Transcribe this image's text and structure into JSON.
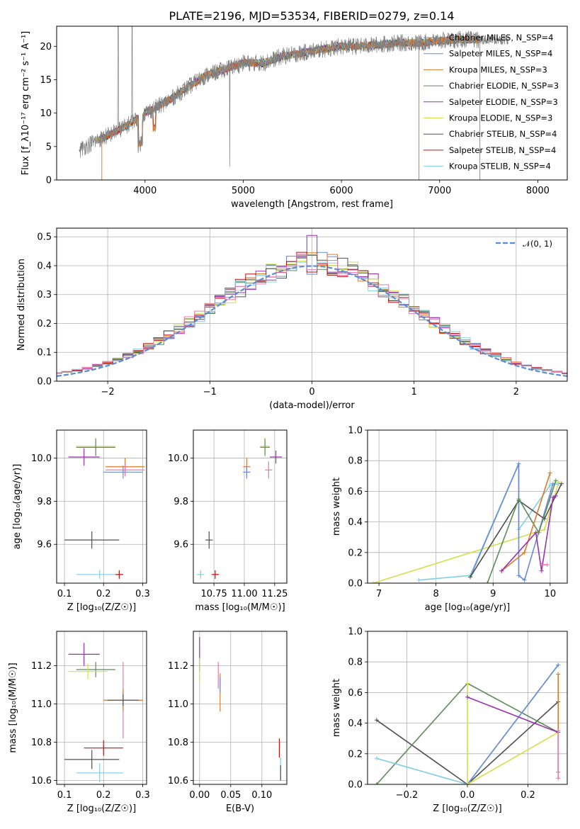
{
  "title": "PLATE=2196, MJD=53534, FIBERID=0279, z=0.14",
  "colors": {
    "c0": "#808080",
    "c1": "#6a8ad8",
    "c2": "#e07a2a",
    "c3": "#5b8c5a",
    "c4": "#9b30b0",
    "c5": "#d4e04a",
    "c6": "#505050",
    "c7": "#c01010",
    "c8": "#80d0e0",
    "c9": "#e87ab0",
    "dash": "#5b8ad8"
  },
  "chart_data": [
    {
      "type": "line",
      "id": "spectrum",
      "xlabel": "wavelength [Angstrom, rest frame]",
      "ylabel": "Flux [f_λ10⁻¹⁷ erg cm⁻² s⁻¹ A⁻¹]",
      "xlim": [
        3100,
        8300
      ],
      "ylim": [
        0,
        23
      ],
      "xticks": [
        4000,
        5000,
        6000,
        7000,
        8000
      ],
      "yticks": [
        0,
        5,
        10,
        15,
        20
      ],
      "grid": false,
      "legend_position": "right",
      "continuum": {
        "x": [
          3330,
          3450,
          3600,
          3800,
          4000,
          4200,
          4400,
          4600,
          4800,
          5000,
          5200,
          5400,
          5600,
          5800,
          6000,
          6200,
          6400,
          6600,
          6800,
          7000,
          7200,
          7400
        ],
        "y": [
          4.5,
          5.5,
          6.5,
          8.0,
          10.0,
          11.5,
          13.5,
          15.5,
          16.5,
          17.5,
          17.5,
          18.5,
          19.0,
          19.5,
          20.0,
          20.0,
          20.3,
          20.5,
          20.5,
          20.8,
          21.0,
          21.0
        ]
      },
      "series": [
        {
          "name": "Chabrier MILES, N_SSP=4"
        },
        {
          "name": "Salpeter MILES, N_SSP=4"
        },
        {
          "name": "Kroupa MILES, N_SSP=3"
        },
        {
          "name": "Chabrier ELODIE, N_SSP=3"
        },
        {
          "name": "Salpeter ELODIE, N_SSP=3"
        },
        {
          "name": "Kroupa ELODIE, N_SSP=3"
        },
        {
          "name": "Chabrier STELIB, N_SSP=4"
        },
        {
          "name": "Salpeter STELIB, N_SSP=4"
        },
        {
          "name": "Kroupa STELIB, N_SSP=4"
        }
      ]
    },
    {
      "type": "bar",
      "id": "residuals",
      "xlabel": "(data-model)/error",
      "ylabel": "Normed distribution",
      "xlim": [
        -2.5,
        2.5
      ],
      "ylim": [
        0,
        0.53
      ],
      "xticks": [
        -2,
        -1,
        0,
        1,
        2
      ],
      "yticks": [
        0.0,
        0.1,
        0.2,
        0.3,
        0.4,
        0.5
      ],
      "grid": true,
      "legend_position": "top-right",
      "legend": [
        {
          "name": "𝒩(0, 1)"
        }
      ],
      "bin_width": 0.1
    },
    {
      "type": "scatter",
      "id": "age_vs_Z",
      "xlabel": "Z [log₁₀(Z/Z☉)]",
      "ylabel": "age  [log₁₀(age/yr)]",
      "xlim": [
        0.08,
        0.31
      ],
      "ylim": [
        9.42,
        10.13
      ],
      "xticks": [
        0.1,
        0.2,
        0.3
      ],
      "yticks": [
        9.6,
        9.8,
        10.0
      ],
      "grid": true,
      "points": [
        {
          "x": 0.18,
          "y": 10.055,
          "xerr": 0.05,
          "yerr": 0.04,
          "color": "c5"
        },
        {
          "x": 0.18,
          "y": 10.05,
          "xerr": 0.05,
          "yerr": 0.04,
          "color": "c3"
        },
        {
          "x": 0.15,
          "y": 10.005,
          "xerr": 0.04,
          "yerr": 0.04,
          "color": "c4"
        },
        {
          "x": 0.255,
          "y": 9.96,
          "xerr": 0.05,
          "yerr": 0.04,
          "color": "c2"
        },
        {
          "x": 0.255,
          "y": 9.945,
          "xerr": 0.05,
          "yerr": 0.03,
          "color": "c9"
        },
        {
          "x": 0.25,
          "y": 9.935,
          "xerr": 0.05,
          "yerr": 0.03,
          "color": "c1"
        },
        {
          "x": 0.17,
          "y": 9.62,
          "xerr": 0.07,
          "yerr": 0.04,
          "color": "c6"
        },
        {
          "x": 0.19,
          "y": 9.46,
          "xerr": 0.06,
          "yerr": 0.02,
          "color": "c8"
        },
        {
          "x": 0.24,
          "y": 9.46,
          "xerr": 0.01,
          "yerr": 0.02,
          "color": "c7"
        }
      ]
    },
    {
      "type": "scatter",
      "id": "age_vs_mass",
      "xlabel": "mass [log₁₀(M/M☉)]",
      "ylabel": "",
      "xlim": [
        10.58,
        11.35
      ],
      "ylim": [
        9.42,
        10.13
      ],
      "xticks": [
        10.75,
        11.0,
        11.25
      ],
      "yticks": [
        9.6,
        9.8,
        10.0
      ],
      "grid": true,
      "points": [
        {
          "x": 11.17,
          "y": 10.055,
          "xerr": 0.04,
          "yerr": 0.04,
          "color": "c5"
        },
        {
          "x": 11.17,
          "y": 10.05,
          "xerr": 0.04,
          "yerr": 0.04,
          "color": "c3"
        },
        {
          "x": 11.26,
          "y": 10.005,
          "xerr": 0.05,
          "yerr": 0.03,
          "color": "c4"
        },
        {
          "x": 11.02,
          "y": 9.96,
          "xerr": 0.03,
          "yerr": 0.04,
          "color": "c2"
        },
        {
          "x": 11.2,
          "y": 9.945,
          "xerr": 0.03,
          "yerr": 0.04,
          "color": "c9"
        },
        {
          "x": 11.02,
          "y": 9.935,
          "xerr": 0.03,
          "yerr": 0.03,
          "color": "c1"
        },
        {
          "x": 10.71,
          "y": 9.62,
          "xerr": 0.03,
          "yerr": 0.04,
          "color": "c6"
        },
        {
          "x": 10.64,
          "y": 9.46,
          "xerr": 0.03,
          "yerr": 0.02,
          "color": "c8"
        },
        {
          "x": 10.76,
          "y": 9.46,
          "xerr": 0.03,
          "yerr": 0.02,
          "color": "c7"
        }
      ]
    },
    {
      "type": "line",
      "id": "weight_vs_age",
      "xlabel": "age  [log₁₀(age/yr)]",
      "ylabel": "mass weight",
      "xlim": [
        6.8,
        10.3
      ],
      "ylim": [
        0,
        1.0
      ],
      "xticks": [
        7,
        8,
        9,
        10
      ],
      "yticks": [
        0.0,
        0.2,
        0.4,
        0.6,
        0.8,
        1.0
      ],
      "grid": true,
      "series": [
        {
          "color": "c5",
          "x": [
            6.9,
            9.9,
            10.15
          ],
          "y": [
            0.0,
            0.35,
            0.66
          ]
        },
        {
          "color": "c8",
          "x": [
            7.7,
            8.6,
            9.45,
            9.45,
            10.0,
            10.15
          ],
          "y": [
            0.02,
            0.05,
            0.78,
            0.35,
            0.64,
            0.65
          ]
        },
        {
          "color": "c1",
          "x": [
            8.6,
            9.45,
            9.45,
            9.55,
            10.05
          ],
          "y": [
            0.04,
            0.78,
            0.05,
            0.02,
            0.65
          ]
        },
        {
          "color": "c6",
          "x": [
            8.6,
            9.45,
            9.9,
            10.2
          ],
          "y": [
            0.04,
            0.54,
            0.42,
            0.65
          ]
        },
        {
          "color": "c3",
          "x": [
            8.9,
            9.45,
            9.8,
            10.1
          ],
          "y": [
            0.0,
            0.55,
            0.33,
            0.67
          ]
        },
        {
          "color": "c2",
          "x": [
            9.15,
            9.55,
            10.0
          ],
          "y": [
            0.08,
            0.2,
            0.72
          ]
        },
        {
          "color": "c4",
          "x": [
            9.15,
            9.75,
            9.85,
            10.05,
            10.1
          ],
          "y": [
            0.08,
            0.33,
            0.08,
            0.56,
            0.57
          ]
        },
        {
          "color": "c9",
          "x": [
            9.85,
            9.95
          ],
          "y": [
            0.12,
            0.12
          ]
        }
      ]
    },
    {
      "type": "scatter",
      "id": "mass_vs_Z",
      "xlabel": "Z [log₁₀(Z/Z☉)]",
      "ylabel": "mass [log₁₀(M/M☉)]",
      "xlim": [
        0.08,
        0.31
      ],
      "ylim": [
        10.58,
        11.38
      ],
      "xticks": [
        0.1,
        0.2,
        0.3
      ],
      "yticks": [
        10.6,
        10.8,
        11.0,
        11.2
      ],
      "grid": true,
      "points": [
        {
          "x": 0.15,
          "y": 11.26,
          "xerr": 0.04,
          "yerr": 0.06,
          "color": "c4"
        },
        {
          "x": 0.18,
          "y": 11.18,
          "xerr": 0.05,
          "yerr": 0.04,
          "color": "c3"
        },
        {
          "x": 0.16,
          "y": 11.17,
          "xerr": 0.05,
          "yerr": 0.04,
          "color": "c5"
        },
        {
          "x": 0.25,
          "y": 11.02,
          "xerr": 0.05,
          "yerr": 0.2,
          "color": "c9"
        },
        {
          "x": 0.25,
          "y": 11.02,
          "xerr": 0.05,
          "yerr": 0.06,
          "color": "c2"
        },
        {
          "x": 0.25,
          "y": 11.02,
          "xerr": 0.04,
          "yerr": 0.03,
          "color": "c6"
        },
        {
          "x": 0.2,
          "y": 10.77,
          "xerr": 0.05,
          "yerr": 0.04,
          "color": "c7"
        },
        {
          "x": 0.17,
          "y": 10.71,
          "xerr": 0.07,
          "yerr": 0.05,
          "color": "c6"
        },
        {
          "x": 0.19,
          "y": 10.64,
          "xerr": 0.06,
          "yerr": 0.05,
          "color": "c8"
        }
      ]
    },
    {
      "type": "scatter",
      "id": "mass_vs_EBV",
      "xlabel": "E(B-V)",
      "ylabel": "",
      "xlim": [
        -0.01,
        0.14
      ],
      "ylim": [
        10.58,
        11.38
      ],
      "xticks": [
        0.0,
        0.05,
        0.1
      ],
      "yticks": [
        10.6,
        10.8,
        11.0,
        11.2
      ],
      "grid": true,
      "points": [
        {
          "x": 0.0,
          "y": 11.26,
          "xerr": 0.0,
          "yerr": 0.09,
          "color": "c4"
        },
        {
          "x": 0.0,
          "y": 11.18,
          "xerr": 0.0,
          "yerr": 0.06,
          "color": "c5"
        },
        {
          "x": 0.03,
          "y": 11.15,
          "xerr": 0.0,
          "yerr": 0.07,
          "color": "c9"
        },
        {
          "x": 0.033,
          "y": 11.06,
          "xerr": 0.0,
          "yerr": 0.1,
          "color": "c2"
        },
        {
          "x": 0.033,
          "y": 11.1,
          "xerr": 0.0,
          "yerr": 0.04,
          "color": "c1"
        },
        {
          "x": 0.128,
          "y": 10.77,
          "xerr": 0.0,
          "yerr": 0.05,
          "color": "c7"
        },
        {
          "x": 0.13,
          "y": 10.66,
          "xerr": 0.0,
          "yerr": 0.06,
          "color": "c8"
        },
        {
          "x": 0.13,
          "y": 10.64,
          "xerr": 0.0,
          "yerr": 0.04,
          "color": "c6"
        }
      ]
    },
    {
      "type": "line",
      "id": "weight_vs_Z",
      "xlabel": "Z [log₁₀(Z/Z☉)]",
      "ylabel": "mass weight",
      "xlim": [
        -0.33,
        0.33
      ],
      "ylim": [
        0,
        1.0
      ],
      "xticks": [
        -0.2,
        0.0,
        0.2
      ],
      "yticks": [
        0.0,
        0.2,
        0.4,
        0.6,
        0.8,
        1.0
      ],
      "grid": true,
      "series": [
        {
          "color": "c6",
          "x": [
            -0.3,
            0.0,
            0.3
          ],
          "y": [
            0.42,
            0.0,
            0.54
          ]
        },
        {
          "color": "c3",
          "x": [
            -0.3,
            0.0,
            0.3
          ],
          "y": [
            0.0,
            0.66,
            0.34
          ]
        },
        {
          "color": "c8",
          "x": [
            -0.3,
            0.0,
            0.3
          ],
          "y": [
            0.17,
            0.0,
            0.78
          ]
        },
        {
          "color": "c1",
          "x": [
            0.0,
            0.3
          ],
          "y": [
            0.0,
            0.78
          ]
        },
        {
          "color": "c5",
          "x": [
            0.0,
            0.0,
            0.3
          ],
          "y": [
            0.66,
            0.0,
            0.34
          ]
        },
        {
          "color": "c4",
          "x": [
            0.0,
            0.3
          ],
          "y": [
            0.57,
            0.34
          ]
        },
        {
          "color": "c2",
          "x": [
            0.3,
            0.3
          ],
          "y": [
            0.08,
            0.72
          ]
        },
        {
          "color": "c9",
          "x": [
            0.3,
            0.3
          ],
          "y": [
            0.04,
            0.35
          ]
        }
      ]
    }
  ]
}
